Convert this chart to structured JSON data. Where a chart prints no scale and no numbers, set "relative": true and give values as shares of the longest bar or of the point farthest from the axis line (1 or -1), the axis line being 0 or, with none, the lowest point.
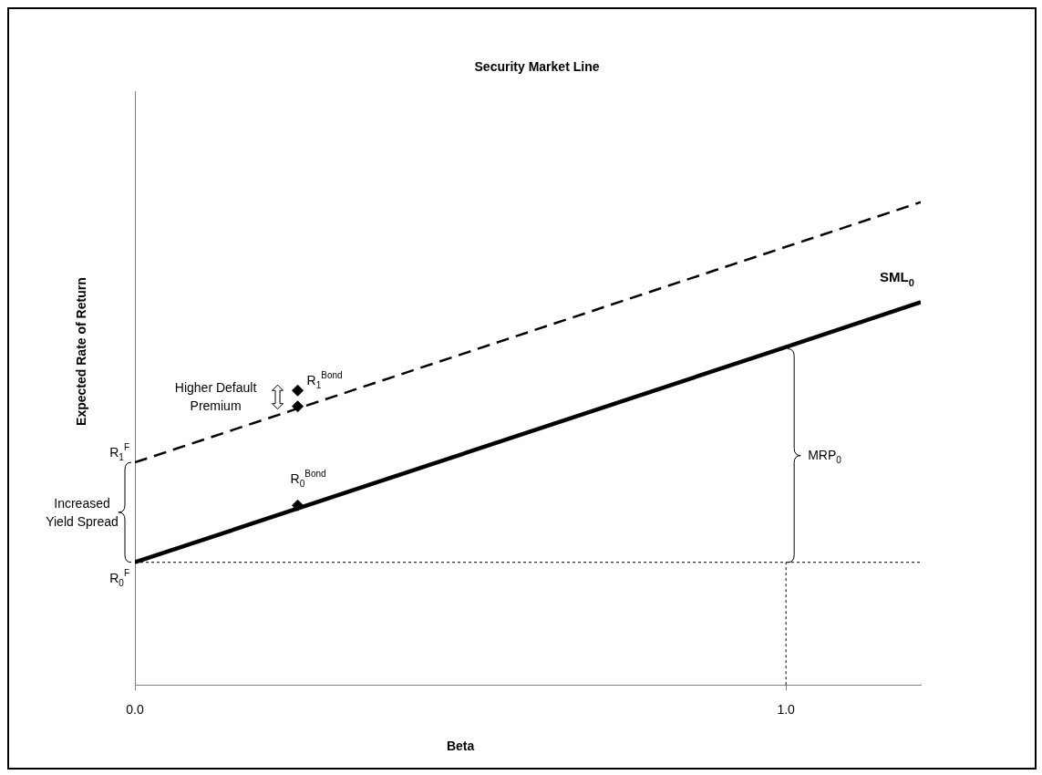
{
  "chart_data": {
    "type": "line",
    "title": "Security Market Line",
    "xlabel": "Beta",
    "ylabel": "Expected Rate of Return",
    "relative": true,
    "xlim": [
      0,
      1.207
    ],
    "xticks": [
      {
        "value": 0,
        "label": "0.0"
      },
      {
        "value": 1,
        "label": "1.0"
      }
    ],
    "grid": false,
    "legend": false,
    "series": [
      {
        "name": "SML$_{0}$",
        "type": "line",
        "color": "#000000",
        "line_style": "solid",
        "marker": "none",
        "x": [
          0,
          1,
          1.207
        ],
        "values": [
          0.254,
          0.7,
          0.793
        ]
      },
      {
        "type": "line",
        "color": "#000000",
        "line_style": "dashed",
        "marker": "none",
        "x": [
          0,
          1.207
        ],
        "values": [
          0.461,
          1
        ]
      },
      {
        "type": "scatter",
        "color": "#000000",
        "marker": "diamond",
        "x": [
          0.25,
          0.25,
          0.25
        ],
        "values": [
          0.372,
          0.577,
          0.61
        ]
      }
    ],
    "ref_lines": [
      {
        "axis": "y",
        "value": 0.254,
        "line_style": "dotted",
        "label": "R$_{0}$$^{F}$"
      },
      {
        "axis": "x",
        "value": 1,
        "line_style": "dotted"
      }
    ],
    "annotations": [
      "R$_{1}$$^{F}$",
      "Increased Yield Spread",
      "Higher Default Premium",
      {
        "text": "R$_{1}$$^{Bond}$",
        "x": 0.25,
        "y": 0.61
      },
      {
        "text": "R$_{0}$$^{Bond}$",
        "x": 0.25,
        "y": 0.372
      },
      "MRP$_{0}$"
    ]
  }
}
